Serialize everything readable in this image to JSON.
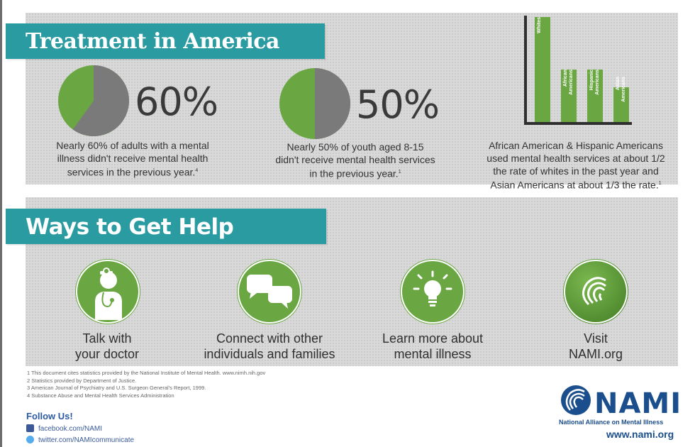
{
  "treatment": {
    "title": "Treatment in America",
    "adults": {
      "percent_label": "60%",
      "share": 0.6,
      "caption_lines": [
        "Nearly 60% of adults with a mental",
        "illness didn't receive mental health",
        "services in the previous year."
      ],
      "footnote_mark": "4"
    },
    "youth": {
      "percent_label": "50%",
      "share": 0.5,
      "caption_lines": [
        "Nearly 50% of youth aged 8-15",
        "didn't receive mental health services",
        "in the previous year."
      ],
      "footnote_mark": "1"
    },
    "disparity": {
      "bars": [
        {
          "label": "Whites",
          "value": 3
        },
        {
          "label": "African Americans",
          "value": 1.5
        },
        {
          "label": "Hispanic Americans",
          "value": 1.5
        },
        {
          "label": "Asian Americans",
          "value": 1
        }
      ],
      "caption_lines": [
        "African American & Hispanic Americans",
        "used mental health services at about 1/2",
        "the rate of whites in the past year and",
        "Asian Americans at about 1/3 the rate."
      ],
      "footnote_mark": "1"
    }
  },
  "help": {
    "title": "Ways to Get Help",
    "items": [
      {
        "icon": "doctor-icon",
        "line1": "Talk with",
        "line2": "your doctor"
      },
      {
        "icon": "speech-bubbles-icon",
        "line1": "Connect with other",
        "line2": "individuals and families"
      },
      {
        "icon": "lightbulb-icon",
        "line1": "Learn more about",
        "line2": "mental illness"
      },
      {
        "icon": "nami-swirl-icon",
        "line1": "Visit",
        "line2": "NAMI.org"
      }
    ]
  },
  "footnotes": [
    "1 This document cites statistics provided by the National Institute of Mental Health. www.nimh.nih.gov",
    "2 Statistics provided by Department of Justice.",
    "3 American Journal of Psychiatry and U.S. Surgeon General's Report, 1999.",
    "4 Substance Abuse and Mental Health Services Administration"
  ],
  "social": {
    "heading": "Follow Us!",
    "facebook": "facebook.com/NAMI",
    "twitter": "twitter.com/NAMIcommunicate"
  },
  "brand": {
    "wordmark": "NAMI",
    "tagline": "National Alliance on Mental Illness",
    "url": "www.nami.org",
    "green": "#6aa743",
    "teal": "#2a9ba0",
    "gray": "#7a7a7a",
    "navy": "#1b4e8c"
  }
}
